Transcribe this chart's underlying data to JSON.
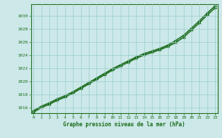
{
  "title": "Graphe pression niveau de la mer (hPa)",
  "ylabel_values": [
    1016,
    1018,
    1020,
    1022,
    1024,
    1026,
    1028,
    1030
  ],
  "xlim": [
    -0.3,
    23.3
  ],
  "ylim": [
    1015.2,
    1031.8
  ],
  "bg_color": "#cce8e8",
  "grid_color": "#99cccc",
  "line_color": "#1a6b1a",
  "marker_color": "#1a6b1a",
  "series": [
    [
      1015.5,
      1016.2,
      1016.7,
      1017.3,
      1017.8,
      1018.4,
      1019.1,
      1019.8,
      1020.5,
      1021.2,
      1021.9,
      1022.5,
      1023.1,
      1023.7,
      1024.2,
      1024.6,
      1025.0,
      1025.5,
      1026.2,
      1027.0,
      1028.1,
      1029.2,
      1030.4,
      1031.5
    ],
    [
      1015.4,
      1016.1,
      1016.6,
      1017.2,
      1017.7,
      1018.3,
      1019.0,
      1019.7,
      1020.4,
      1021.1,
      1021.8,
      1022.5,
      1023.0,
      1023.6,
      1024.1,
      1024.5,
      1024.9,
      1025.4,
      1026.0,
      1026.8,
      1027.9,
      1029.0,
      1030.2,
      1031.3
    ],
    [
      1015.3,
      1016.0,
      1016.5,
      1017.1,
      1017.6,
      1018.2,
      1018.9,
      1019.6,
      1020.3,
      1021.0,
      1021.7,
      1022.3,
      1022.9,
      1023.5,
      1024.0,
      1024.4,
      1024.8,
      1025.3,
      1025.9,
      1026.7,
      1027.8,
      1028.9,
      1030.1,
      1031.2
    ],
    [
      1015.6,
      1016.3,
      1016.8,
      1017.4,
      1017.9,
      1018.5,
      1019.2,
      1019.9,
      1020.6,
      1021.3,
      1022.0,
      1022.6,
      1023.2,
      1023.8,
      1024.3,
      1024.7,
      1025.1,
      1025.6,
      1026.3,
      1027.1,
      1028.2,
      1029.3,
      1030.5,
      1031.6
    ]
  ]
}
